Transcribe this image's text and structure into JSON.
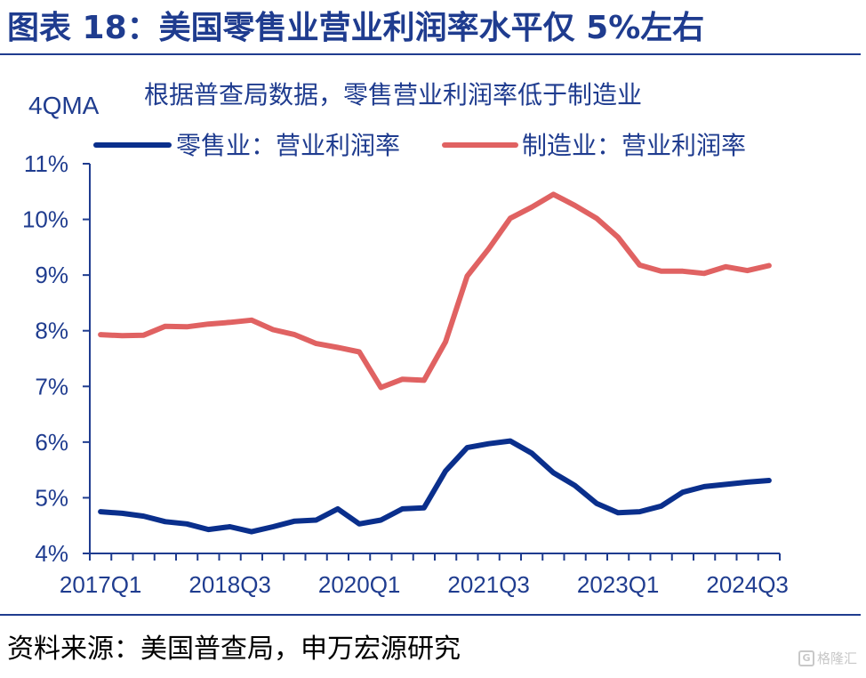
{
  "figure": {
    "title": "图表 18：美国零售业营业利润率水平仅 5%左右",
    "source": "资料来源：美国普查局，申万宏源研究",
    "watermark": "格隆汇"
  },
  "colors": {
    "primary": "#1f3c8f",
    "retail_line": "#0a2f8c",
    "manufacturing_line": "#e06262"
  },
  "chart_data": {
    "type": "line",
    "subtitle": "根据普查局数据，零售营业利润率低于制造业",
    "unit_label": "4QMA",
    "x": [
      "2017Q1",
      "2017Q2",
      "2017Q3",
      "2017Q4",
      "2018Q1",
      "2018Q2",
      "2018Q3",
      "2018Q4",
      "2019Q1",
      "2019Q2",
      "2019Q3",
      "2019Q4",
      "2020Q1",
      "2020Q2",
      "2020Q3",
      "2020Q4",
      "2021Q1",
      "2021Q2",
      "2021Q3",
      "2021Q4",
      "2022Q1",
      "2022Q2",
      "2022Q3",
      "2022Q4",
      "2023Q1",
      "2023Q2",
      "2023Q3",
      "2023Q4",
      "2024Q1",
      "2024Q2",
      "2024Q3",
      "2024Q4"
    ],
    "x_tick_labels": [
      "2017Q1",
      "2018Q3",
      "2020Q1",
      "2021Q3",
      "2023Q1",
      "2024Q3"
    ],
    "ylim": [
      4,
      11
    ],
    "y_tick_labels": [
      "4%",
      "5%",
      "6%",
      "7%",
      "8%",
      "9%",
      "10%",
      "11%"
    ],
    "grid": false,
    "legend_position": "top",
    "series": [
      {
        "name": "零售业：营业利润率",
        "values": [
          4.75,
          4.72,
          4.67,
          4.57,
          4.53,
          4.43,
          4.48,
          4.39,
          4.48,
          4.58,
          4.6,
          4.8,
          4.53,
          4.6,
          4.8,
          4.82,
          5.48,
          5.9,
          5.97,
          6.02,
          5.8,
          5.45,
          5.22,
          4.9,
          4.73,
          4.75,
          4.85,
          5.1,
          5.2,
          5.24,
          5.28,
          5.31
        ]
      },
      {
        "name": "制造业：营业利润率",
        "values": [
          7.93,
          7.91,
          7.92,
          8.08,
          8.07,
          8.12,
          8.15,
          8.19,
          8.02,
          7.93,
          7.77,
          7.7,
          7.62,
          6.98,
          7.13,
          7.11,
          7.8,
          8.98,
          9.47,
          10.02,
          10.22,
          10.45,
          10.25,
          10.02,
          9.68,
          9.18,
          9.07,
          9.07,
          9.03,
          9.15,
          9.08,
          9.17
        ]
      }
    ]
  }
}
